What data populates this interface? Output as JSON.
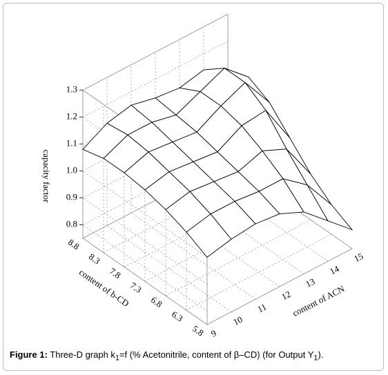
{
  "chart_data": {
    "type": "surface",
    "zlabel": "capacity factor",
    "xlabel": "content of ACN",
    "ylabel": "content of b-CD",
    "x": [
      9,
      10,
      11,
      12,
      13,
      14,
      15
    ],
    "y": [
      5.8,
      6.3,
      6.8,
      7.3,
      7.8,
      8.3,
      8.8
    ],
    "z": [
      [
        1.0,
        1.02,
        1.03,
        1.02,
        0.98,
        0.9,
        0.82
      ],
      [
        1.04,
        1.06,
        1.06,
        1.05,
        1.05,
        0.98,
        0.86
      ],
      [
        1.07,
        1.09,
        1.08,
        1.07,
        1.1,
        1.06,
        0.92
      ],
      [
        1.09,
        1.11,
        1.1,
        1.09,
        1.14,
        1.15,
        1.0
      ],
      [
        1.1,
        1.13,
        1.12,
        1.11,
        1.16,
        1.2,
        1.08
      ],
      [
        1.1,
        1.14,
        1.14,
        1.12,
        1.16,
        1.2,
        1.12
      ],
      [
        1.08,
        1.13,
        1.15,
        1.13,
        1.12,
        1.14,
        1.08
      ]
    ],
    "xlim": [
      9,
      15
    ],
    "ylim": [
      5.8,
      8.8
    ],
    "zlim": [
      0.75,
      1.3
    ],
    "xticks": [
      9,
      10,
      11,
      12,
      13,
      14,
      15
    ],
    "yticks": [
      5.8,
      6.3,
      6.8,
      7.3,
      7.8,
      8.3,
      8.8
    ],
    "zticks": [
      0.8,
      0.9,
      {
        "value": 1,
        "label": "1.0"
      },
      1.1,
      1.2,
      1.3
    ],
    "grid": true,
    "color": "#ffffff"
  },
  "caption": {
    "label": "Figure 1:",
    "parts": [
      " Three-D graph k",
      "1",
      "=f (% Acetonitrile, content of β–CD) (for Output Y",
      "1",
      ")."
    ]
  }
}
